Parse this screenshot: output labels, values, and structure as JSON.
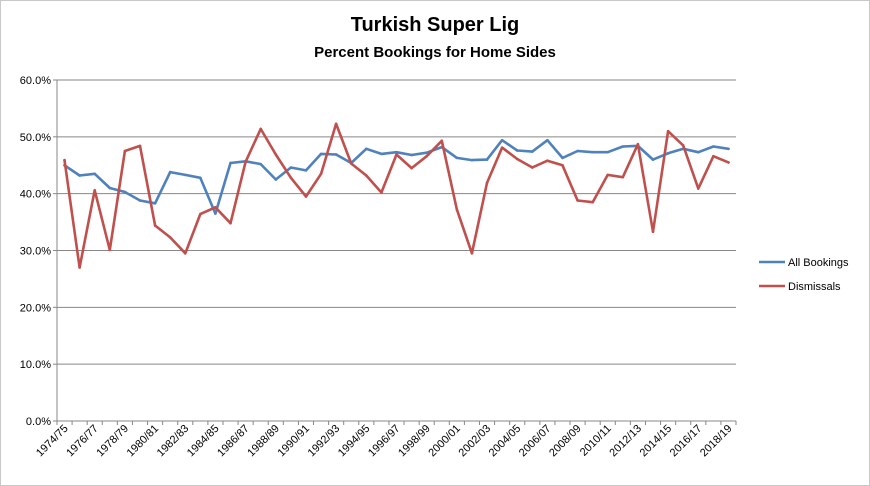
{
  "chart_data": {
    "type": "line",
    "title": "Turkish Super Lig",
    "subtitle": "Percent Bookings for Home Sides",
    "xlabel": "",
    "ylabel": "",
    "ylim": [
      0,
      60
    ],
    "yticks": [
      "0.0%",
      "10.0%",
      "20.0%",
      "30.0%",
      "40.0%",
      "50.0%",
      "60.0%"
    ],
    "grid": true,
    "legend_position": "right",
    "x": [
      "1974/75",
      "1975/76",
      "1976/77",
      "1977/78",
      "1978/79",
      "1979/80",
      "1980/81",
      "1981/82",
      "1982/83",
      "1983/84",
      "1984/85",
      "1985/86",
      "1986/87",
      "1987/88",
      "1988/89",
      "1989/90",
      "1990/91",
      "1991/92",
      "1992/93",
      "1993/94",
      "1994/95",
      "1995/96",
      "1996/97",
      "1997/98",
      "1998/99",
      "1999/00",
      "2000/01",
      "2001/02",
      "2002/03",
      "2003/04",
      "2004/05",
      "2005/06",
      "2006/07",
      "2007/08",
      "2008/09",
      "2009/10",
      "2010/11",
      "2011/12",
      "2012/13",
      "2013/14",
      "2014/15",
      "2015/16",
      "2016/17",
      "2017/18",
      "2018/19"
    ],
    "x_tick_labels": [
      "1974/75",
      "1976/77",
      "1978/79",
      "1980/81",
      "1982/83",
      "1984/85",
      "1986/87",
      "1988/89",
      "1990/91",
      "1992/93",
      "1994/95",
      "1996/97",
      "1998/99",
      "2000/01",
      "2002/03",
      "2004/05",
      "2006/07",
      "2008/09",
      "2010/11",
      "2012/13",
      "2014/15",
      "2016/17",
      "2018/19"
    ],
    "series": [
      {
        "name": "All Bookings",
        "color": "#4F81BD",
        "values": [
          45.0,
          43.2,
          43.5,
          41.0,
          40.3,
          38.8,
          38.3,
          43.8,
          43.3,
          42.8,
          36.5,
          45.4,
          45.7,
          45.2,
          42.5,
          44.6,
          44.1,
          47.0,
          46.9,
          45.4,
          47.9,
          47.0,
          47.3,
          46.8,
          47.2,
          48.2,
          46.3,
          45.9,
          46.0,
          49.4,
          47.6,
          47.4,
          49.4,
          46.3,
          47.5,
          47.3,
          47.3,
          48.3,
          48.4,
          46.0,
          47.1,
          47.9,
          47.3,
          48.3,
          47.9
        ]
      },
      {
        "name": "Dismissals",
        "color": "#C0504D",
        "values": [
          45.9,
          27.0,
          40.6,
          30.1,
          47.5,
          48.4,
          34.4,
          32.3,
          29.5,
          36.4,
          37.6,
          34.8,
          45.6,
          51.4,
          46.9,
          42.8,
          39.5,
          43.5,
          52.3,
          45.3,
          43.2,
          40.2,
          46.9,
          44.5,
          46.6,
          49.3,
          37.2,
          29.5,
          41.9,
          48.1,
          46.1,
          44.6,
          45.8,
          45.0,
          38.8,
          38.5,
          43.3,
          42.9,
          48.7,
          33.3,
          51.0,
          48.5,
          40.9,
          46.6,
          45.5
        ]
      }
    ]
  }
}
